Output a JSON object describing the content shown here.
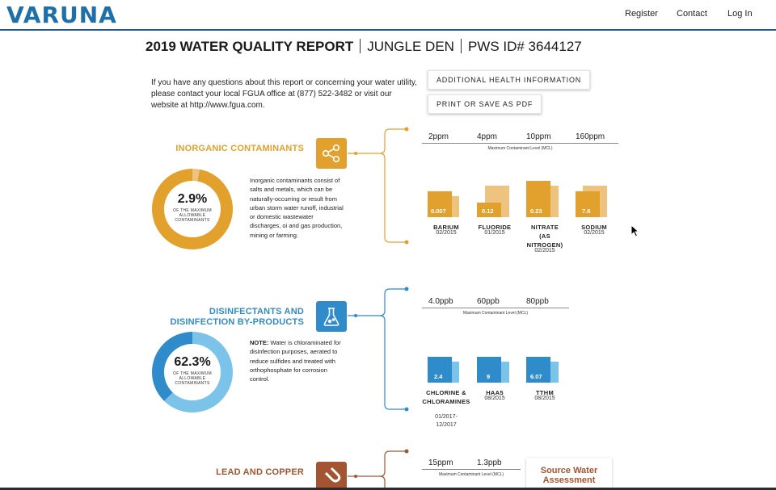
{
  "header": {
    "logo_text": "VARUNA",
    "nav": {
      "register": "Register",
      "contact": "Contact",
      "login": "Log In"
    }
  },
  "report": {
    "title_main": "2019 WATER QUALITY REPORT",
    "title_system": "JUNGLE DEN",
    "title_pws": "PWS ID# 3644127",
    "intro": "If you have any questions about this report or concerning your water utility, please contact your local FGUA office at (877) 522-3482 or visit our website at http://www.fgua.com.",
    "btn_health": "ADDITIONAL HEALTH INFORMATION",
    "btn_print": "PRINT OR SAVE AS PDF"
  },
  "colors": {
    "inorganic": "#e2a12c",
    "inorganic_light": "#edc37f",
    "disinfect": "#2f8bc9",
    "disinfect_light": "#7cc3ea",
    "lead": "#a25530"
  },
  "sections": {
    "inorganic": {
      "title": "INORGANIC CONTAMINANTS",
      "icon": "share-nodes-icon",
      "percent": "2.9%",
      "percent_value": 2.9,
      "caption": "OF THE MAXIMUM ALLOWABLE CONTAMINANTS",
      "description": "Inorganic contaminants consist of salts and metals, which can be naturally-occurring or result from urban storm water runoff, industrial or domestic wastewater discharges, oi and gas production, mining or farming.",
      "mcl_label": "Maximum Contaminant Level (MCL)",
      "mcl_values": [
        "2ppm",
        "4ppm",
        "10ppm",
        "160ppm"
      ],
      "items": [
        {
          "name": "BARIUM",
          "date": "02/2015",
          "value": "0.007"
        },
        {
          "name": "FLUORIDE",
          "date": "01/2015",
          "value": "0.12"
        },
        {
          "name": "NITRATE (AS NITROGEN)",
          "date": "02/2015",
          "value": "0.23"
        },
        {
          "name": "SODIUM",
          "date": "02/2015",
          "value": "7.8"
        }
      ]
    },
    "disinfect": {
      "title_line1": "DISINFECTANTS AND",
      "title_line2": "DISINFECTION BY-PRODUCTS",
      "icon": "flask-icon",
      "percent": "62.3%",
      "percent_value": 62.3,
      "caption": "OF THE MAXIMUM ALLOWABLE CONTAMINANTS",
      "note_label": "NOTE:",
      "description": "Water is chloraminated for disinfection purposes, aerated to reduce sulfides and treated with orthophosphate for corrosion control.",
      "mcl_label": "Maximum Contaminant Level (MCL)",
      "mcl_values": [
        "4.0ppb",
        "60ppb",
        "80ppb"
      ],
      "items": [
        {
          "name": "CHLORINE & CHLORAMINES",
          "date": "01/2017-12/2017",
          "value": "2.4"
        },
        {
          "name": "HAA5",
          "date": "08/2015",
          "value": "9"
        },
        {
          "name": "TTHM",
          "date": "08/2015",
          "value": "6.07"
        }
      ]
    },
    "lead": {
      "title": "LEAD AND COPPER",
      "icon": "magnet-icon",
      "mcl_label": "Maximum Contaminant Level (MCL)",
      "mcl_values": [
        "15ppm",
        "1.3ppb"
      ],
      "swa_label": "Source Water Assessment"
    }
  }
}
